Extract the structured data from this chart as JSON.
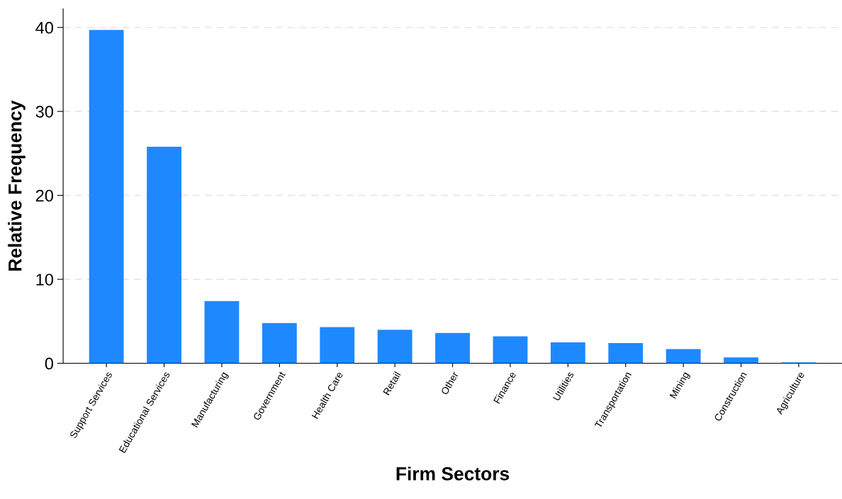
{
  "chart_data": {
    "type": "bar",
    "xlabel": "Firm Sectors",
    "ylabel": "Relative Frequency",
    "categories": [
      "Support Services",
      "Educational Services",
      "Manufacturing",
      "Government",
      "Health Care",
      "Retail",
      "Other",
      "Finance",
      "Utilities",
      "Transportation",
      "Mining",
      "Construction",
      "Agriculture"
    ],
    "values": [
      39.7,
      25.8,
      7.4,
      4.8,
      4.3,
      4.0,
      3.6,
      3.2,
      2.5,
      2.4,
      1.7,
      0.7,
      0.1
    ],
    "color": "#1e88ff",
    "ylim": [
      0,
      42.2
    ],
    "yticks": [
      0,
      10,
      20,
      30,
      40
    ],
    "grid": "y",
    "legend": false
  }
}
